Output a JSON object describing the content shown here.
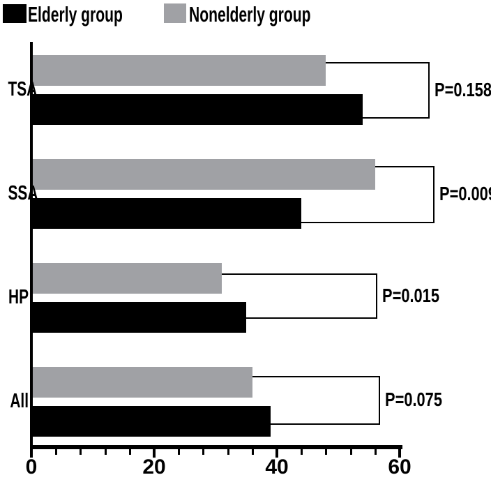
{
  "legend": {
    "elderly_label": "Elderly group",
    "nonelderly_label": "Nonelderly group"
  },
  "colors": {
    "elderly": "#000000",
    "nonelderly": "#a0a1a5",
    "axis": "#000000",
    "background": "#ffffff"
  },
  "chart_data": {
    "type": "bar",
    "orientation": "horizontal",
    "title": "",
    "xlabel": "",
    "ylabel": "",
    "categories": [
      "TSA",
      "SSA",
      "HP",
      "All"
    ],
    "series": [
      {
        "name": "Nonelderly group",
        "color": "#a0a1a5",
        "values": [
          48,
          56,
          31,
          36
        ]
      },
      {
        "name": "Elderly group",
        "color": "#000000",
        "values": [
          54,
          44,
          35,
          39
        ]
      }
    ],
    "p_labels": [
      "P=0.158",
      "P=0.009",
      "P=0.015",
      "P=0.075"
    ],
    "xlim": [
      0,
      60
    ],
    "x_ticks": [
      0,
      20,
      40,
      60
    ],
    "x_tick_labels": [
      "0",
      "20",
      "40",
      "60"
    ],
    "minor_tick_step": 4,
    "grid": false,
    "legend_position": "top"
  }
}
